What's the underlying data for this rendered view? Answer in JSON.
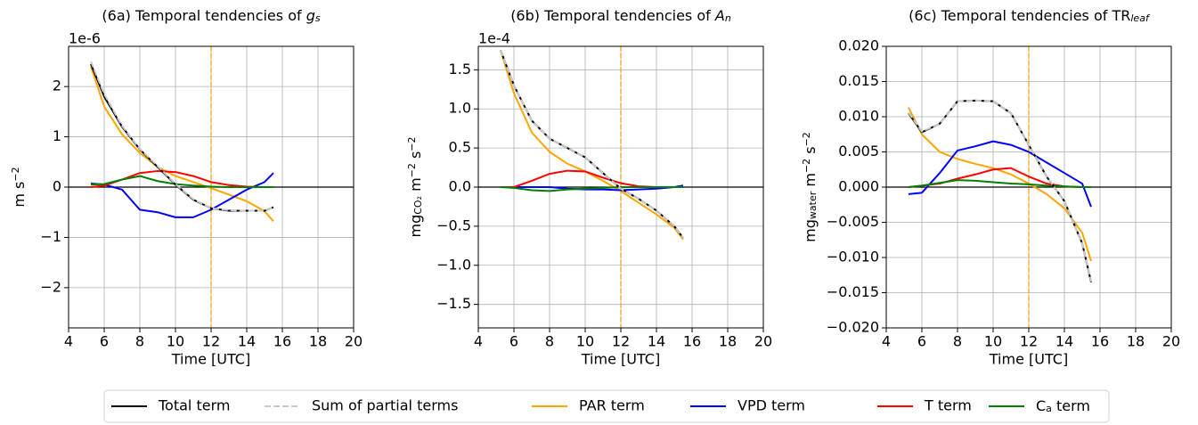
{
  "chart_data": [
    {
      "type": "line",
      "title": [
        "(6a) Temporal tendencies of ",
        {
          "text": "g",
          "style": "italic"
        },
        {
          "text": "s",
          "style": "italic-sub"
        }
      ],
      "offset_label": "1e-6",
      "x_label": "Time [UTC]",
      "y_label": [
        "m s",
        {
          "text": "−2",
          "style": "sup"
        }
      ],
      "xlim": [
        4,
        20
      ],
      "xticks": [
        4,
        6,
        8,
        10,
        12,
        14,
        16,
        18,
        20
      ],
      "ylim": [
        -2.8,
        2.8
      ],
      "yticks": [
        {
          "value": -2,
          "label": "−2"
        },
        {
          "value": -1,
          "label": "−1"
        },
        0,
        1,
        2
      ],
      "grid": true,
      "hline": 0,
      "hline_color": "#000000",
      "vline": 12,
      "vline_color": "#ffa500",
      "legend": "outside bottom",
      "x": [
        5.25,
        6,
        7,
        8,
        9,
        10,
        11,
        12,
        13,
        14,
        15,
        15.5
      ],
      "series": [
        {
          "name": "Total term",
          "color": "#000000",
          "linestyle": "solid",
          "values": [
            2.45,
            1.8,
            1.2,
            0.75,
            0.4,
            0.05,
            -0.25,
            -0.42,
            -0.47,
            -0.47,
            -0.47,
            -0.4
          ]
        },
        {
          "name": "Sum of partial terms",
          "color": "#c8c8c8",
          "linestyle": "dashed",
          "values": [
            2.5,
            1.85,
            1.22,
            0.76,
            0.42,
            0.06,
            -0.24,
            -0.42,
            -0.46,
            -0.47,
            -0.47,
            -0.4
          ]
        },
        {
          "name": "PAR term",
          "color": "#ffa500",
          "linestyle": "solid",
          "values": [
            2.4,
            1.6,
            1.05,
            0.68,
            0.4,
            0.22,
            0.1,
            -0.02,
            -0.15,
            -0.28,
            -0.48,
            -0.68
          ]
        },
        {
          "name": "VPD term",
          "color": "#0000ff",
          "linestyle": "solid",
          "values": [
            0.07,
            0.05,
            -0.05,
            -0.45,
            -0.5,
            -0.6,
            -0.6,
            -0.45,
            -0.25,
            -0.05,
            0.1,
            0.28
          ]
        },
        {
          "name": "T term",
          "color": "#ff0000",
          "linestyle": "solid",
          "values": [
            0,
            0.03,
            0.15,
            0.28,
            0.32,
            0.3,
            0.22,
            0.1,
            0.04,
            0.01,
            0,
            0
          ]
        },
        {
          "name": [
            "C",
            {
              "text": "a",
              "style": "sub"
            },
            " term"
          ],
          "color": "#008000",
          "linestyle": "solid",
          "values": [
            0.05,
            0.06,
            0.15,
            0.22,
            0.12,
            0.06,
            0.03,
            0.01,
            0,
            0,
            0,
            0
          ]
        }
      ]
    },
    {
      "type": "line",
      "title": [
        "(6b) Temporal tendencies of ",
        {
          "text": "A",
          "style": "italic"
        },
        {
          "text": "n",
          "style": "italic-sub"
        }
      ],
      "offset_label": "1e-4",
      "x_label": "Time [UTC]",
      "y_label": [
        "mg",
        {
          "text": "CO₂",
          "style": "sub"
        },
        " m",
        {
          "text": "−2",
          "style": "sup"
        },
        " s",
        {
          "text": "−2",
          "style": "sup"
        }
      ],
      "xlim": [
        4,
        20
      ],
      "xticks": [
        4,
        6,
        8,
        10,
        12,
        14,
        16,
        18,
        20
      ],
      "ylim": [
        -1.8,
        1.8
      ],
      "yticks": [
        {
          "value": -1.5,
          "label": "−1.5"
        },
        {
          "value": -1,
          "label": "−1.0"
        },
        {
          "value": -0.5,
          "label": "−0.5"
        },
        {
          "value": 0,
          "label": "0.0"
        },
        0.5,
        {
          "value": 1,
          "label": "1.0"
        },
        1.5
      ],
      "grid": true,
      "hline": 0,
      "hline_color": "#000000",
      "vline": 12,
      "vline_color": "#ffa500",
      "x": [
        5.25,
        6,
        7,
        8,
        9,
        10,
        11,
        12,
        13,
        14,
        15,
        15.5
      ],
      "series": [
        {
          "name": "Total term",
          "color": "#000000",
          "linestyle": "solid",
          "values": [
            1.75,
            1.3,
            0.85,
            0.62,
            0.5,
            0.38,
            0.18,
            -0.02,
            -0.15,
            -0.3,
            -0.5,
            -0.65
          ]
        },
        {
          "name": "Sum of partial terms",
          "color": "#c8c8c8",
          "linestyle": "dashed",
          "values": [
            1.75,
            1.3,
            0.85,
            0.62,
            0.5,
            0.38,
            0.18,
            -0.02,
            -0.15,
            -0.3,
            -0.5,
            -0.65
          ]
        },
        {
          "name": "PAR term",
          "color": "#ffa500",
          "linestyle": "solid",
          "values": [
            1.75,
            1.2,
            0.7,
            0.45,
            0.3,
            0.2,
            0.08,
            -0.05,
            -0.2,
            -0.35,
            -0.52,
            -0.67
          ]
        },
        {
          "name": "VPD term",
          "color": "#0000ff",
          "linestyle": "solid",
          "values": [
            0,
            0,
            0,
            0,
            -0.02,
            -0.03,
            -0.03,
            -0.04,
            -0.03,
            -0.02,
            0,
            0.02
          ]
        },
        {
          "name": "T term",
          "color": "#ff0000",
          "linestyle": "solid",
          "values": [
            0,
            0,
            0.08,
            0.17,
            0.21,
            0.2,
            0.12,
            0.05,
            0.01,
            0,
            0,
            0
          ]
        },
        {
          "name": [
            "C",
            {
              "text": "a",
              "style": "sub"
            },
            " term"
          ],
          "color": "#008000",
          "linestyle": "solid",
          "values": [
            0,
            -0.01,
            -0.04,
            -0.05,
            -0.03,
            -0.02,
            -0.01,
            0,
            0,
            0,
            0,
            0
          ]
        }
      ]
    },
    {
      "type": "line",
      "title": [
        "(6c) Temporal tendencies of TR",
        {
          "text": "leaf",
          "style": "italic-sub"
        }
      ],
      "x_label": "Time [UTC]",
      "y_label": [
        "mg",
        {
          "text": "water",
          "style": "sub"
        },
        " m",
        {
          "text": "−2",
          "style": "sup"
        },
        " s",
        {
          "text": "−2",
          "style": "sup"
        }
      ],
      "xlim": [
        4,
        20
      ],
      "xticks": [
        4,
        6,
        8,
        10,
        12,
        14,
        16,
        18,
        20
      ],
      "ylim": [
        -0.02,
        0.02
      ],
      "yticks": [
        {
          "value": -0.02,
          "label": "−0.020"
        },
        {
          "value": -0.015,
          "label": "−0.015"
        },
        {
          "value": -0.01,
          "label": "−0.010"
        },
        {
          "value": -0.005,
          "label": "−0.005"
        },
        {
          "value": 0,
          "label": "0.000"
        },
        0.005,
        {
          "value": 0.01,
          "label": "0.010"
        },
        0.015,
        {
          "value": 0.02,
          "label": "0.020"
        }
      ],
      "grid": true,
      "hline": 0,
      "hline_color": "#000000",
      "vline": 12,
      "vline_color": "#ffa500",
      "x": [
        5.25,
        6,
        7,
        8,
        9,
        10,
        11,
        12,
        13,
        14,
        15,
        15.5
      ],
      "series": [
        {
          "name": "Total term",
          "color": "#000000",
          "linestyle": "solid",
          "values": [
            0.0105,
            0.0078,
            0.009,
            0.0122,
            0.0123,
            0.0122,
            0.0105,
            0.006,
            0.0015,
            -0.002,
            -0.008,
            -0.0135
          ]
        },
        {
          "name": "Sum of partial terms",
          "color": "#c8c8c8",
          "linestyle": "dashed",
          "values": [
            0.0106,
            0.0079,
            0.009,
            0.0122,
            0.0123,
            0.0122,
            0.0105,
            0.006,
            0.0015,
            -0.002,
            -0.008,
            -0.0134
          ]
        },
        {
          "name": "PAR term",
          "color": "#ffa500",
          "linestyle": "solid",
          "values": [
            0.0113,
            0.0075,
            0.005,
            0.004,
            0.0033,
            0.0027,
            0.0018,
            0.0005,
            -0.001,
            -0.003,
            -0.0065,
            -0.0105
          ]
        },
        {
          "name": "VPD term",
          "color": "#0000ff",
          "linestyle": "solid",
          "values": [
            -0.001,
            -0.0008,
            0.002,
            0.0052,
            0.0058,
            0.0065,
            0.006,
            0.005,
            0.0035,
            0.002,
            0.0005,
            -0.0028
          ]
        },
        {
          "name": "T term",
          "color": "#ff0000",
          "linestyle": "solid",
          "values": [
            0,
            0.0002,
            0.0005,
            0.0012,
            0.0018,
            0.0025,
            0.0027,
            0.0015,
            0.0005,
            0.0001,
            0,
            0
          ]
        },
        {
          "name": [
            "C",
            {
              "text": "a",
              "style": "sub"
            },
            " term"
          ],
          "color": "#008000",
          "linestyle": "solid",
          "values": [
            0,
            0.0002,
            0.0006,
            0.001,
            0.0009,
            0.0007,
            0.0005,
            0.0004,
            0.0002,
            0.0001,
            0,
            0
          ]
        }
      ]
    }
  ]
}
